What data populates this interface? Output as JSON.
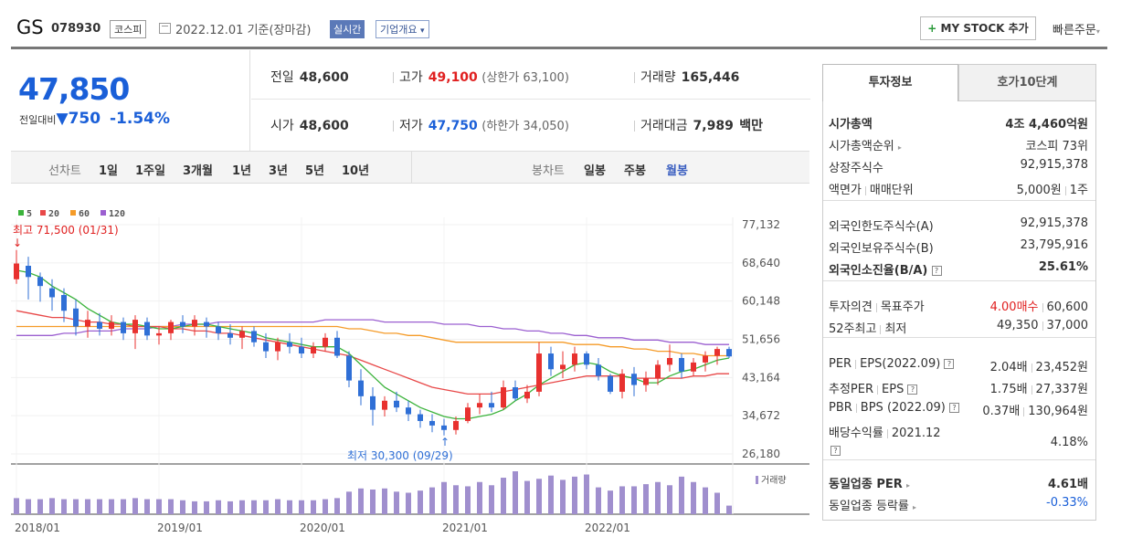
{
  "header": {
    "name": "GS",
    "code": "078930",
    "market": "코스피",
    "date": "2022.12.01 기준(장마감)",
    "realtime": "실시간",
    "overview": "기업개요",
    "overview_arrow": "▾",
    "mystock_plus": "+",
    "mystock": "MY STOCK 추가",
    "quick": "빠른주문",
    "quick_arrow": "▾"
  },
  "price": {
    "current": "47,850",
    "diff_label": "전일대비",
    "diff_arrow": "▼",
    "diff": "750",
    "rate": "-1.54%"
  },
  "quote": {
    "prev_label": "전일",
    "prev": "48,600",
    "high_label": "고가",
    "high": "49,100",
    "upper": "(상한가 63,100)",
    "volume_label": "거래량",
    "volume": "165,446",
    "open_label": "시가",
    "open": "48,600",
    "low_label": "저가",
    "low": "47,750",
    "lower": "(하한가 34,050)",
    "amount_label": "거래대금",
    "amount": "7,989",
    "amount_unit": "백만"
  },
  "period_bar": {
    "line_label": "선차트",
    "periods": [
      "1일",
      "1주일",
      "3개월",
      "1년",
      "3년",
      "5년",
      "10년"
    ],
    "candle_label": "봉차트",
    "candles": [
      "일봉",
      "주봉",
      "월봉"
    ]
  },
  "chart_data": {
    "type": "candlestick",
    "legend": [
      "5",
      "20",
      "60",
      "120"
    ],
    "legend_colors": [
      "#3bb33b",
      "#e84848",
      "#f59b28",
      "#9b5fd0"
    ],
    "y_ticks": [
      "77,132",
      "68,640",
      "60,148",
      "51,656",
      "43,164",
      "34,672",
      "26,180"
    ],
    "ylim": [
      26180,
      77132
    ],
    "x_ticks": [
      "2018/01",
      "2019/01",
      "2020/01",
      "2021/01",
      "2022/01"
    ],
    "high_note": "최고 71,500 (01/31)",
    "low_note": "최저 30,300 (09/29)",
    "high_arrow": "↓",
    "low_arrow": "↑",
    "volume_label": "거래량",
    "candles": [
      [
        65000,
        71500,
        64000,
        68500
      ],
      [
        68000,
        70000,
        60500,
        65500
      ],
      [
        65500,
        66500,
        60000,
        63500
      ],
      [
        63000,
        65000,
        58000,
        61000
      ],
      [
        61500,
        63000,
        55500,
        58000
      ],
      [
        58500,
        60500,
        52500,
        54500
      ],
      [
        54500,
        58000,
        52000,
        56000
      ],
      [
        55500,
        57500,
        52500,
        54000
      ],
      [
        54000,
        57000,
        52500,
        55500
      ],
      [
        55500,
        56500,
        51500,
        53000
      ],
      [
        53000,
        57000,
        49500,
        56000
      ],
      [
        55500,
        56500,
        51500,
        52500
      ],
      [
        52500,
        54500,
        50500,
        53000
      ],
      [
        53000,
        56000,
        51500,
        55500
      ],
      [
        55500,
        57000,
        53000,
        54500
      ],
      [
        54500,
        57000,
        52500,
        56000
      ],
      [
        55500,
        56500,
        52000,
        54500
      ],
      [
        54500,
        55500,
        51500,
        53000
      ],
      [
        53000,
        55000,
        50500,
        52000
      ],
      [
        52000,
        54500,
        49500,
        53500
      ],
      [
        53500,
        54500,
        50000,
        51000
      ],
      [
        51000,
        53000,
        47500,
        49000
      ],
      [
        49000,
        52000,
        47000,
        51000
      ],
      [
        51000,
        53000,
        48500,
        50000
      ],
      [
        50000,
        52000,
        47500,
        48500
      ],
      [
        48500,
        51000,
        47500,
        50000
      ],
      [
        50000,
        53000,
        49000,
        52000
      ],
      [
        52000,
        53500,
        47500,
        48000
      ],
      [
        48000,
        49000,
        41000,
        42500
      ],
      [
        42500,
        45000,
        37000,
        39000
      ],
      [
        39000,
        41000,
        32500,
        36000
      ],
      [
        36000,
        39000,
        34500,
        38000
      ],
      [
        38000,
        40000,
        35500,
        36500
      ],
      [
        36500,
        38000,
        33500,
        35000
      ],
      [
        35000,
        36000,
        32000,
        33500
      ],
      [
        33500,
        35000,
        31000,
        32500
      ],
      [
        32500,
        34000,
        30300,
        31500
      ],
      [
        31500,
        34500,
        30500,
        33500
      ],
      [
        33500,
        37500,
        33000,
        36500
      ],
      [
        36500,
        39500,
        35000,
        37500
      ],
      [
        37500,
        40000,
        35500,
        36500
      ],
      [
        36500,
        42500,
        36000,
        41000
      ],
      [
        41000,
        42500,
        38000,
        38500
      ],
      [
        38500,
        41500,
        37500,
        40000
      ],
      [
        40000,
        51000,
        39000,
        48500
      ],
      [
        48500,
        50000,
        43500,
        45000
      ],
      [
        45000,
        49000,
        43000,
        46000
      ],
      [
        46000,
        50000,
        44500,
        48500
      ],
      [
        48500,
        49000,
        45000,
        46000
      ],
      [
        46000,
        47500,
        42500,
        43500
      ],
      [
        43500,
        44000,
        39500,
        40000
      ],
      [
        40000,
        45000,
        38500,
        44000
      ],
      [
        44000,
        45500,
        39000,
        41500
      ],
      [
        41500,
        44500,
        40000,
        43000
      ],
      [
        43000,
        47000,
        41500,
        46000
      ],
      [
        46000,
        50500,
        44500,
        47500
      ],
      [
        47500,
        48500,
        43000,
        44500
      ],
      [
        44500,
        47500,
        43500,
        46500
      ],
      [
        46500,
        49000,
        44500,
        48000
      ],
      [
        48000,
        50000,
        46000,
        49500
      ],
      [
        49500,
        50000,
        47500,
        47850
      ]
    ],
    "ma5": [
      67000,
      66500,
      65500,
      63500,
      62000,
      60500,
      58500,
      57000,
      55500,
      55000,
      55000,
      54500,
      54000,
      54000,
      54500,
      55000,
      55000,
      54500,
      54000,
      53500,
      53000,
      52000,
      51500,
      51000,
      50500,
      50000,
      50000,
      50000,
      48500,
      46000,
      43500,
      41000,
      39500,
      38000,
      36500,
      35500,
      34500,
      34000,
      34000,
      34500,
      35000,
      36000,
      38000,
      39500,
      41500,
      43000,
      44500,
      46000,
      46500,
      46000,
      44500,
      43500,
      43000,
      42000,
      42000,
      43500,
      44500,
      45000,
      46000,
      47000,
      47500
    ],
    "ma20": [
      58000,
      57500,
      57000,
      56500,
      56500,
      56000,
      55500,
      55500,
      55000,
      55000,
      54500,
      54500,
      54500,
      54000,
      54000,
      53500,
      53500,
      53000,
      53000,
      52500,
      52000,
      51500,
      51000,
      50500,
      50000,
      49500,
      49000,
      48500,
      48000,
      47000,
      46000,
      45000,
      44000,
      43000,
      42000,
      41000,
      40500,
      40000,
      39500,
      39500,
      39500,
      40000,
      40500,
      41000,
      41500,
      42000,
      42500,
      43000,
      43500,
      43500,
      43500,
      43500,
      43000,
      43000,
      43000,
      43000,
      43000,
      43500,
      43500,
      44000,
      44000
    ],
    "ma60": [
      54500,
      54500,
      54500,
      54500,
      54500,
      54500,
      54500,
      54500,
      54500,
      54500,
      54500,
      54500,
      54500,
      54500,
      54500,
      54500,
      54500,
      54500,
      54500,
      54500,
      54500,
      54500,
      54500,
      54500,
      54500,
      54500,
      54500,
      54500,
      54000,
      54000,
      53500,
      53000,
      53000,
      52500,
      52500,
      52000,
      51500,
      51000,
      51000,
      51000,
      51000,
      51000,
      51000,
      51000,
      51000,
      51000,
      51000,
      50500,
      50500,
      50500,
      50000,
      50000,
      49500,
      49500,
      49000,
      49000,
      48500,
      48500,
      48000,
      48000,
      48000
    ],
    "ma120": [
      52500,
      52500,
      52500,
      52500,
      53000,
      53000,
      53500,
      53500,
      53500,
      54000,
      54000,
      54000,
      54500,
      54500,
      55000,
      55000,
      55000,
      55500,
      55500,
      55500,
      55500,
      55500,
      55500,
      55500,
      55500,
      55500,
      56000,
      56000,
      56000,
      56000,
      56000,
      55500,
      55500,
      55500,
      55500,
      55500,
      55000,
      55000,
      55000,
      54500,
      54500,
      54000,
      54000,
      53500,
      53500,
      53000,
      53000,
      52500,
      52500,
      52000,
      52000,
      52000,
      51500,
      51500,
      51500,
      51000,
      51000,
      51000,
      50500,
      50500,
      50500
    ],
    "volumes": [
      15,
      14,
      14,
      15,
      14,
      14,
      14,
      14,
      14,
      14,
      15,
      14,
      14,
      14,
      13,
      12,
      12,
      13,
      12,
      13,
      13,
      13,
      14,
      13,
      13,
      13,
      14,
      15,
      21,
      24,
      23,
      24,
      21,
      20,
      22,
      25,
      30,
      27,
      26,
      30,
      27,
      34,
      40,
      31,
      33,
      36,
      32,
      35,
      37,
      25,
      22,
      26,
      26,
      28,
      30,
      27,
      35,
      30,
      25,
      20,
      8
    ]
  },
  "info": {
    "tabs": [
      "투자정보",
      "호가10단계"
    ],
    "rows": [
      {
        "label": "시가총액",
        "value": "4조 4,460억원"
      },
      {
        "label": "시가총액순위",
        "value": "코스피 73위"
      },
      {
        "label": "상장주식수",
        "value": "92,915,378"
      },
      {
        "label": "액면가",
        "label2": "매매단위",
        "value": "5,000원",
        "value2": "1주"
      },
      {
        "label": "외국인한도주식수(A)",
        "value": "92,915,378"
      },
      {
        "label": "외국인보유주식수(B)",
        "value": "23,795,916"
      },
      {
        "label": "외국인소진율(B/A)",
        "value": "25.61%"
      },
      {
        "label": "투자의견",
        "label2": "목표주가",
        "value": "4.00매수",
        "value2": "60,600"
      },
      {
        "label": "52주최고",
        "label2": "최저",
        "value": "49,350",
        "value2": "37,000"
      },
      {
        "label": "PER",
        "label2": "EPS(2022.09)",
        "value": "2.04배",
        "value2": "23,452원"
      },
      {
        "label": "추정PER",
        "label2": "EPS",
        "value": "1.75배",
        "value2": "27,337원"
      },
      {
        "label": "PBR",
        "label2": "BPS (2022.09)",
        "value": "0.37배",
        "value2": "130,964원"
      },
      {
        "label": "배당수익률",
        "label2": "2021.12",
        "value": "4.18%"
      },
      {
        "label": "동일업종 PER",
        "value": "4.61배"
      },
      {
        "label": "동일업종 등락률",
        "value": "-0.33%"
      }
    ],
    "q": "?",
    "arrow": "▸"
  }
}
